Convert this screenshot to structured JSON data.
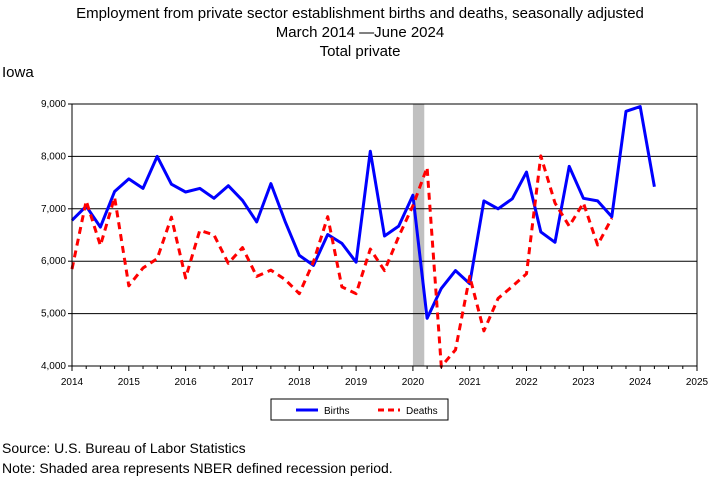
{
  "chart_data": {
    "type": "line",
    "title": "Employment from private sector establishment births and deaths, seasonally adjusted",
    "subtitle": "March 2014 —June 2024",
    "subtitle2": "Total private",
    "region": "Iowa",
    "ylim": [
      4000,
      9000
    ],
    "y_ticks": [
      "4,000",
      "5,000",
      "6,000",
      "7,000",
      "8,000",
      "9,000"
    ],
    "xlim": [
      2014,
      2025
    ],
    "x_ticks": [
      "2014",
      "2015",
      "2016",
      "2017",
      "2018",
      "2019",
      "2020",
      "2021",
      "2022",
      "2023",
      "2024",
      "2025"
    ],
    "grid": true,
    "recession": [
      2020.0,
      2020.2
    ],
    "legend": {
      "position": "bottom"
    },
    "x": [
      2014.0,
      2014.25,
      2014.5,
      2014.75,
      2015.0,
      2015.25,
      2015.5,
      2015.75,
      2016.0,
      2016.25,
      2016.5,
      2016.75,
      2017.0,
      2017.25,
      2017.5,
      2017.75,
      2018.0,
      2018.25,
      2018.5,
      2018.75,
      2019.0,
      2019.25,
      2019.5,
      2019.75,
      2020.0,
      2020.25,
      2020.5,
      2020.75,
      2021.0,
      2021.25,
      2021.5,
      2021.75,
      2022.0,
      2022.25,
      2022.5,
      2022.75,
      2023.0,
      2023.25,
      2023.5,
      2023.75,
      2024.0,
      2024.25
    ],
    "series": [
      {
        "name": "Births",
        "color": "#0000ff",
        "style": "solid",
        "values": [
          6780,
          7050,
          6650,
          7330,
          7570,
          7390,
          8000,
          7470,
          7320,
          7390,
          7200,
          7440,
          7160,
          6750,
          7480,
          6760,
          6110,
          5920,
          6510,
          6340,
          5980,
          8100,
          6480,
          6670,
          7260,
          4910,
          5480,
          5820,
          5570,
          7150,
          7000,
          7190,
          7700,
          6560,
          6360,
          7810,
          7200,
          7150,
          6850,
          8860,
          8950,
          7420
        ]
      },
      {
        "name": "Deaths",
        "color": "#ff0000",
        "style": "dashed",
        "values": [
          5850,
          7150,
          6300,
          7220,
          5530,
          5870,
          6050,
          6840,
          5680,
          6590,
          6500,
          5960,
          6260,
          5710,
          5830,
          5650,
          5380,
          5990,
          6850,
          5510,
          5380,
          6230,
          5820,
          6470,
          7060,
          7790,
          3990,
          4310,
          5710,
          4670,
          5290,
          5520,
          5760,
          8010,
          7110,
          6670,
          7110,
          6310,
          6820,
          null,
          null,
          null
        ]
      }
    ]
  },
  "notes": {
    "source": "Source: U.S. Bureau of Labor Statistics",
    "note": "Note: Shaded area represents NBER defined recession period."
  }
}
